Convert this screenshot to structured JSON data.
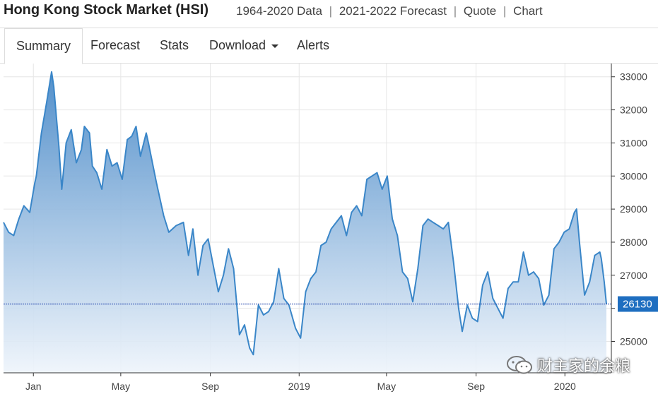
{
  "header": {
    "title": "Hong Kong Stock Market (HSI)",
    "links": [
      "1964-2020 Data",
      "2021-2022 Forecast",
      "Quote",
      "Chart"
    ],
    "separator": "|"
  },
  "tabs": [
    {
      "label": "Summary",
      "active": true
    },
    {
      "label": "Forecast",
      "active": false
    },
    {
      "label": "Stats",
      "active": false
    },
    {
      "label": "Download",
      "active": false,
      "dropdown": true
    },
    {
      "label": "Alerts",
      "active": false
    }
  ],
  "watermark": "财主家的余粮",
  "colors": {
    "line": "#3a86c8",
    "fill_top": "#4a8ac8",
    "fill_bottom": "#eef4fb",
    "current_line": "#1a3fa8",
    "current_badge": "#1e6ec0"
  },
  "chart_data": {
    "type": "area",
    "title": "",
    "xlabel": "",
    "ylabel": "",
    "ylim": [
      24050,
      33400
    ],
    "y_ticks": [
      25000,
      26000,
      27000,
      28000,
      29000,
      30000,
      31000,
      32000,
      33000
    ],
    "y_tick_labels": [
      "25000",
      "26000",
      "27000",
      "28000",
      "29000",
      "30000",
      "31000",
      "32000",
      "33000"
    ],
    "x_ticks": [
      {
        "label": "Jan",
        "date": "2018-01-01"
      },
      {
        "label": "May",
        "date": "2018-05-01"
      },
      {
        "label": "Sep",
        "date": "2018-09-01"
      },
      {
        "label": "2019",
        "date": "2019-01-01"
      },
      {
        "label": "May",
        "date": "2019-05-01"
      },
      {
        "label": "Sep",
        "date": "2019-09-01"
      },
      {
        "label": "2020",
        "date": "2020-01-01"
      }
    ],
    "x_range": [
      "2017-11-21",
      "2020-02-27"
    ],
    "current_value": 26130,
    "current_label": "26130",
    "grid": true,
    "series": [
      {
        "points": [
          [
            "2017-11-21",
            28600
          ],
          [
            "2017-11-28",
            28300
          ],
          [
            "2017-12-05",
            28200
          ],
          [
            "2017-12-12",
            28700
          ],
          [
            "2017-12-19",
            29100
          ],
          [
            "2017-12-27",
            28900
          ],
          [
            "2018-01-03",
            29800
          ],
          [
            "2018-01-05",
            30000
          ],
          [
            "2018-01-12",
            31300
          ],
          [
            "2018-01-19",
            32200
          ],
          [
            "2018-01-26",
            33150
          ],
          [
            "2018-01-29",
            32700
          ],
          [
            "2018-02-05",
            30900
          ],
          [
            "2018-02-09",
            29600
          ],
          [
            "2018-02-15",
            31000
          ],
          [
            "2018-02-22",
            31400
          ],
          [
            "2018-03-01",
            30400
          ],
          [
            "2018-03-08",
            30800
          ],
          [
            "2018-03-12",
            31500
          ],
          [
            "2018-03-19",
            31300
          ],
          [
            "2018-03-23",
            30300
          ],
          [
            "2018-03-29",
            30100
          ],
          [
            "2018-04-05",
            29600
          ],
          [
            "2018-04-12",
            30800
          ],
          [
            "2018-04-19",
            30300
          ],
          [
            "2018-04-26",
            30400
          ],
          [
            "2018-05-03",
            29900
          ],
          [
            "2018-05-10",
            31100
          ],
          [
            "2018-05-16",
            31200
          ],
          [
            "2018-05-22",
            31500
          ],
          [
            "2018-05-28",
            30600
          ],
          [
            "2018-06-05",
            31300
          ],
          [
            "2018-06-08",
            31000
          ],
          [
            "2018-06-19",
            29800
          ],
          [
            "2018-06-29",
            28800
          ],
          [
            "2018-07-06",
            28300
          ],
          [
            "2018-07-16",
            28500
          ],
          [
            "2018-07-26",
            28600
          ],
          [
            "2018-08-02",
            27600
          ],
          [
            "2018-08-08",
            28400
          ],
          [
            "2018-08-15",
            27000
          ],
          [
            "2018-08-22",
            27900
          ],
          [
            "2018-08-29",
            28100
          ],
          [
            "2018-09-05",
            27300
          ],
          [
            "2018-09-12",
            26500
          ],
          [
            "2018-09-19",
            27000
          ],
          [
            "2018-09-26",
            27800
          ],
          [
            "2018-10-03",
            27200
          ],
          [
            "2018-10-11",
            25200
          ],
          [
            "2018-10-18",
            25500
          ],
          [
            "2018-10-25",
            24800
          ],
          [
            "2018-10-30",
            24600
          ],
          [
            "2018-11-06",
            26100
          ],
          [
            "2018-11-13",
            25800
          ],
          [
            "2018-11-20",
            25900
          ],
          [
            "2018-11-27",
            26200
          ],
          [
            "2018-12-04",
            27200
          ],
          [
            "2018-12-11",
            26300
          ],
          [
            "2018-12-18",
            26100
          ],
          [
            "2018-12-27",
            25400
          ],
          [
            "2019-01-03",
            25100
          ],
          [
            "2019-01-10",
            26500
          ],
          [
            "2019-01-17",
            26900
          ],
          [
            "2019-01-24",
            27100
          ],
          [
            "2019-01-31",
            27900
          ],
          [
            "2019-02-07",
            28000
          ],
          [
            "2019-02-14",
            28400
          ],
          [
            "2019-02-21",
            28600
          ],
          [
            "2019-02-28",
            28800
          ],
          [
            "2019-03-07",
            28200
          ],
          [
            "2019-03-14",
            28900
          ],
          [
            "2019-03-21",
            29100
          ],
          [
            "2019-03-28",
            28800
          ],
          [
            "2019-04-04",
            29900
          ],
          [
            "2019-04-11",
            30000
          ],
          [
            "2019-04-18",
            30100
          ],
          [
            "2019-04-25",
            29600
          ],
          [
            "2019-05-02",
            30000
          ],
          [
            "2019-05-09",
            28700
          ],
          [
            "2019-05-16",
            28200
          ],
          [
            "2019-05-23",
            27100
          ],
          [
            "2019-05-30",
            26900
          ],
          [
            "2019-06-06",
            26200
          ],
          [
            "2019-06-13",
            27200
          ],
          [
            "2019-06-20",
            28500
          ],
          [
            "2019-06-27",
            28700
          ],
          [
            "2019-07-04",
            28600
          ],
          [
            "2019-07-11",
            28500
          ],
          [
            "2019-07-18",
            28400
          ],
          [
            "2019-07-25",
            28600
          ],
          [
            "2019-08-01",
            27400
          ],
          [
            "2019-08-08",
            26000
          ],
          [
            "2019-08-13",
            25300
          ],
          [
            "2019-08-20",
            26100
          ],
          [
            "2019-08-27",
            25700
          ],
          [
            "2019-09-03",
            25600
          ],
          [
            "2019-09-10",
            26700
          ],
          [
            "2019-09-17",
            27100
          ],
          [
            "2019-09-24",
            26300
          ],
          [
            "2019-10-01",
            26000
          ],
          [
            "2019-10-08",
            25700
          ],
          [
            "2019-10-15",
            26600
          ],
          [
            "2019-10-22",
            26800
          ],
          [
            "2019-10-29",
            26800
          ],
          [
            "2019-11-05",
            27700
          ],
          [
            "2019-11-12",
            27000
          ],
          [
            "2019-11-19",
            27100
          ],
          [
            "2019-11-26",
            26900
          ],
          [
            "2019-12-03",
            26100
          ],
          [
            "2019-12-10",
            26400
          ],
          [
            "2019-12-17",
            27800
          ],
          [
            "2019-12-24",
            28000
          ],
          [
            "2019-12-31",
            28300
          ],
          [
            "2020-01-07",
            28400
          ],
          [
            "2020-01-14",
            28900
          ],
          [
            "2020-01-17",
            29000
          ],
          [
            "2020-01-21",
            28000
          ],
          [
            "2020-01-28",
            26400
          ],
          [
            "2020-02-04",
            26800
          ],
          [
            "2020-02-11",
            27600
          ],
          [
            "2020-02-18",
            27700
          ],
          [
            "2020-02-20",
            27500
          ],
          [
            "2020-02-24",
            26800
          ],
          [
            "2020-02-27",
            26130
          ]
        ]
      }
    ]
  }
}
